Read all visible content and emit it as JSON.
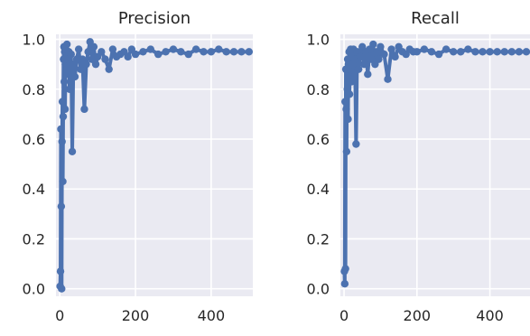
{
  "chart_data": [
    {
      "type": "line",
      "title": "Precision",
      "xlabel": "",
      "ylabel": "",
      "xlim": [
        -10,
        510
      ],
      "ylim": [
        -0.03,
        1.02
      ],
      "x_ticks": [
        0,
        200,
        400
      ],
      "y_ticks": [
        0.0,
        0.2,
        0.4,
        0.6,
        0.8,
        1.0
      ],
      "x_tick_labels": [
        "0",
        "200",
        "400"
      ],
      "y_tick_labels": [
        "0.0",
        "0.2",
        "0.4",
        "0.6",
        "0.8",
        "1.0"
      ],
      "grid": true,
      "legend": "none",
      "markers": true,
      "series": [
        {
          "x": [
            1,
            2,
            3,
            4,
            5,
            6,
            7,
            8,
            9,
            10,
            11,
            12,
            13,
            14,
            15,
            16,
            17,
            18,
            19,
            20,
            22,
            24,
            26,
            28,
            30,
            33,
            36,
            40,
            45,
            50,
            55,
            60,
            65,
            70,
            75,
            80,
            85,
            90,
            95,
            100,
            110,
            120,
            130,
            140,
            150,
            160,
            170,
            180,
            190,
            200,
            220,
            240,
            260,
            280,
            300,
            320,
            340,
            360,
            380,
            400,
            420,
            440,
            460,
            480,
            500
          ],
          "y": [
            0.01,
            0.07,
            0.64,
            0.33,
            0.0,
            0.59,
            0.75,
            0.43,
            0.69,
            0.92,
            0.97,
            0.83,
            0.95,
            0.72,
            0.9,
            0.96,
            0.86,
            0.93,
            0.98,
            0.88,
            0.92,
            0.95,
            0.8,
            0.9,
            0.94,
            0.55,
            0.9,
            0.85,
            0.92,
            0.96,
            0.88,
            0.92,
            0.72,
            0.9,
            0.95,
            0.99,
            0.92,
            0.97,
            0.9,
            0.93,
            0.95,
            0.92,
            0.88,
            0.96,
            0.93,
            0.94,
            0.95,
            0.93,
            0.96,
            0.94,
            0.95,
            0.96,
            0.94,
            0.95,
            0.96,
            0.95,
            0.94,
            0.96,
            0.95,
            0.95,
            0.96,
            0.95,
            0.95,
            0.95,
            0.95
          ]
        }
      ]
    },
    {
      "type": "line",
      "title": "Recall",
      "xlabel": "",
      "ylabel": "",
      "xlim": [
        -10,
        510
      ],
      "ylim": [
        -0.03,
        1.02
      ],
      "x_ticks": [
        0,
        200,
        400
      ],
      "y_ticks": [
        0.0,
        0.2,
        0.4,
        0.6,
        0.8,
        1.0
      ],
      "x_tick_labels": [
        "0",
        "200",
        "400"
      ],
      "y_tick_labels": [
        "0.0",
        "0.2",
        "0.4",
        "0.6",
        "0.8",
        "1.0"
      ],
      "grid": true,
      "legend": "none",
      "markers": true,
      "series": [
        {
          "x": [
            1,
            2,
            3,
            4,
            5,
            6,
            7,
            8,
            9,
            10,
            11,
            12,
            13,
            14,
            15,
            16,
            17,
            18,
            19,
            20,
            22,
            24,
            26,
            28,
            30,
            33,
            36,
            40,
            45,
            50,
            55,
            60,
            65,
            70,
            75,
            80,
            85,
            90,
            95,
            100,
            110,
            120,
            130,
            140,
            150,
            160,
            170,
            180,
            190,
            200,
            220,
            240,
            260,
            280,
            300,
            320,
            340,
            360,
            380,
            400,
            420,
            440,
            460,
            480,
            500
          ],
          "y": [
            0.07,
            0.02,
            0.75,
            0.08,
            0.88,
            0.72,
            0.55,
            0.88,
            0.8,
            0.92,
            0.68,
            0.9,
            0.85,
            0.95,
            0.78,
            0.92,
            0.88,
            0.96,
            0.9,
            0.83,
            0.94,
            0.9,
            0.96,
            0.85,
            0.92,
            0.58,
            0.95,
            0.88,
            0.93,
            0.97,
            0.9,
            0.95,
            0.86,
            0.96,
            0.92,
            0.98,
            0.9,
            0.95,
            0.92,
            0.97,
            0.94,
            0.84,
            0.96,
            0.93,
            0.97,
            0.95,
            0.94,
            0.96,
            0.95,
            0.95,
            0.96,
            0.95,
            0.94,
            0.96,
            0.95,
            0.95,
            0.96,
            0.95,
            0.95,
            0.95,
            0.95,
            0.95,
            0.95,
            0.95,
            0.95
          ]
        }
      ]
    }
  ]
}
